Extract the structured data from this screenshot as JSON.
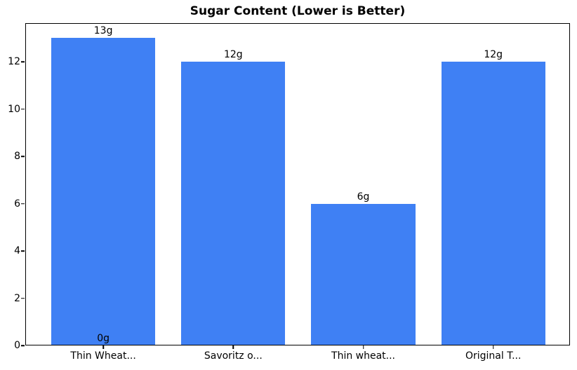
{
  "chart_data": {
    "type": "bar",
    "title": "Sugar Content (Lower is Better)",
    "categories": [
      "Thin Wheat...",
      "Savoritz o...",
      "Thin wheat...",
      "Original T..."
    ],
    "values": [
      13,
      12,
      6,
      12
    ],
    "bar_value_labels": [
      "13g",
      "12g",
      "6g",
      "12g"
    ],
    "annotations": [
      {
        "x_index": 0,
        "y": 0,
        "text": "0g"
      }
    ],
    "xlabel": "",
    "ylabel": "",
    "yticks": [
      0,
      2,
      4,
      6,
      8,
      10,
      12
    ],
    "ytick_labels": [
      "0",
      "2",
      "4",
      "6",
      "8",
      "10",
      "12"
    ],
    "ylim": [
      0,
      13.63
    ],
    "xlim": [
      -0.6,
      3.59
    ],
    "bar_width": 0.8,
    "bar_color": "#3f80f4",
    "axis_color": "#000000",
    "text_color": "#000000",
    "background_color": "#ffffff",
    "grid": false,
    "legend": null
  }
}
